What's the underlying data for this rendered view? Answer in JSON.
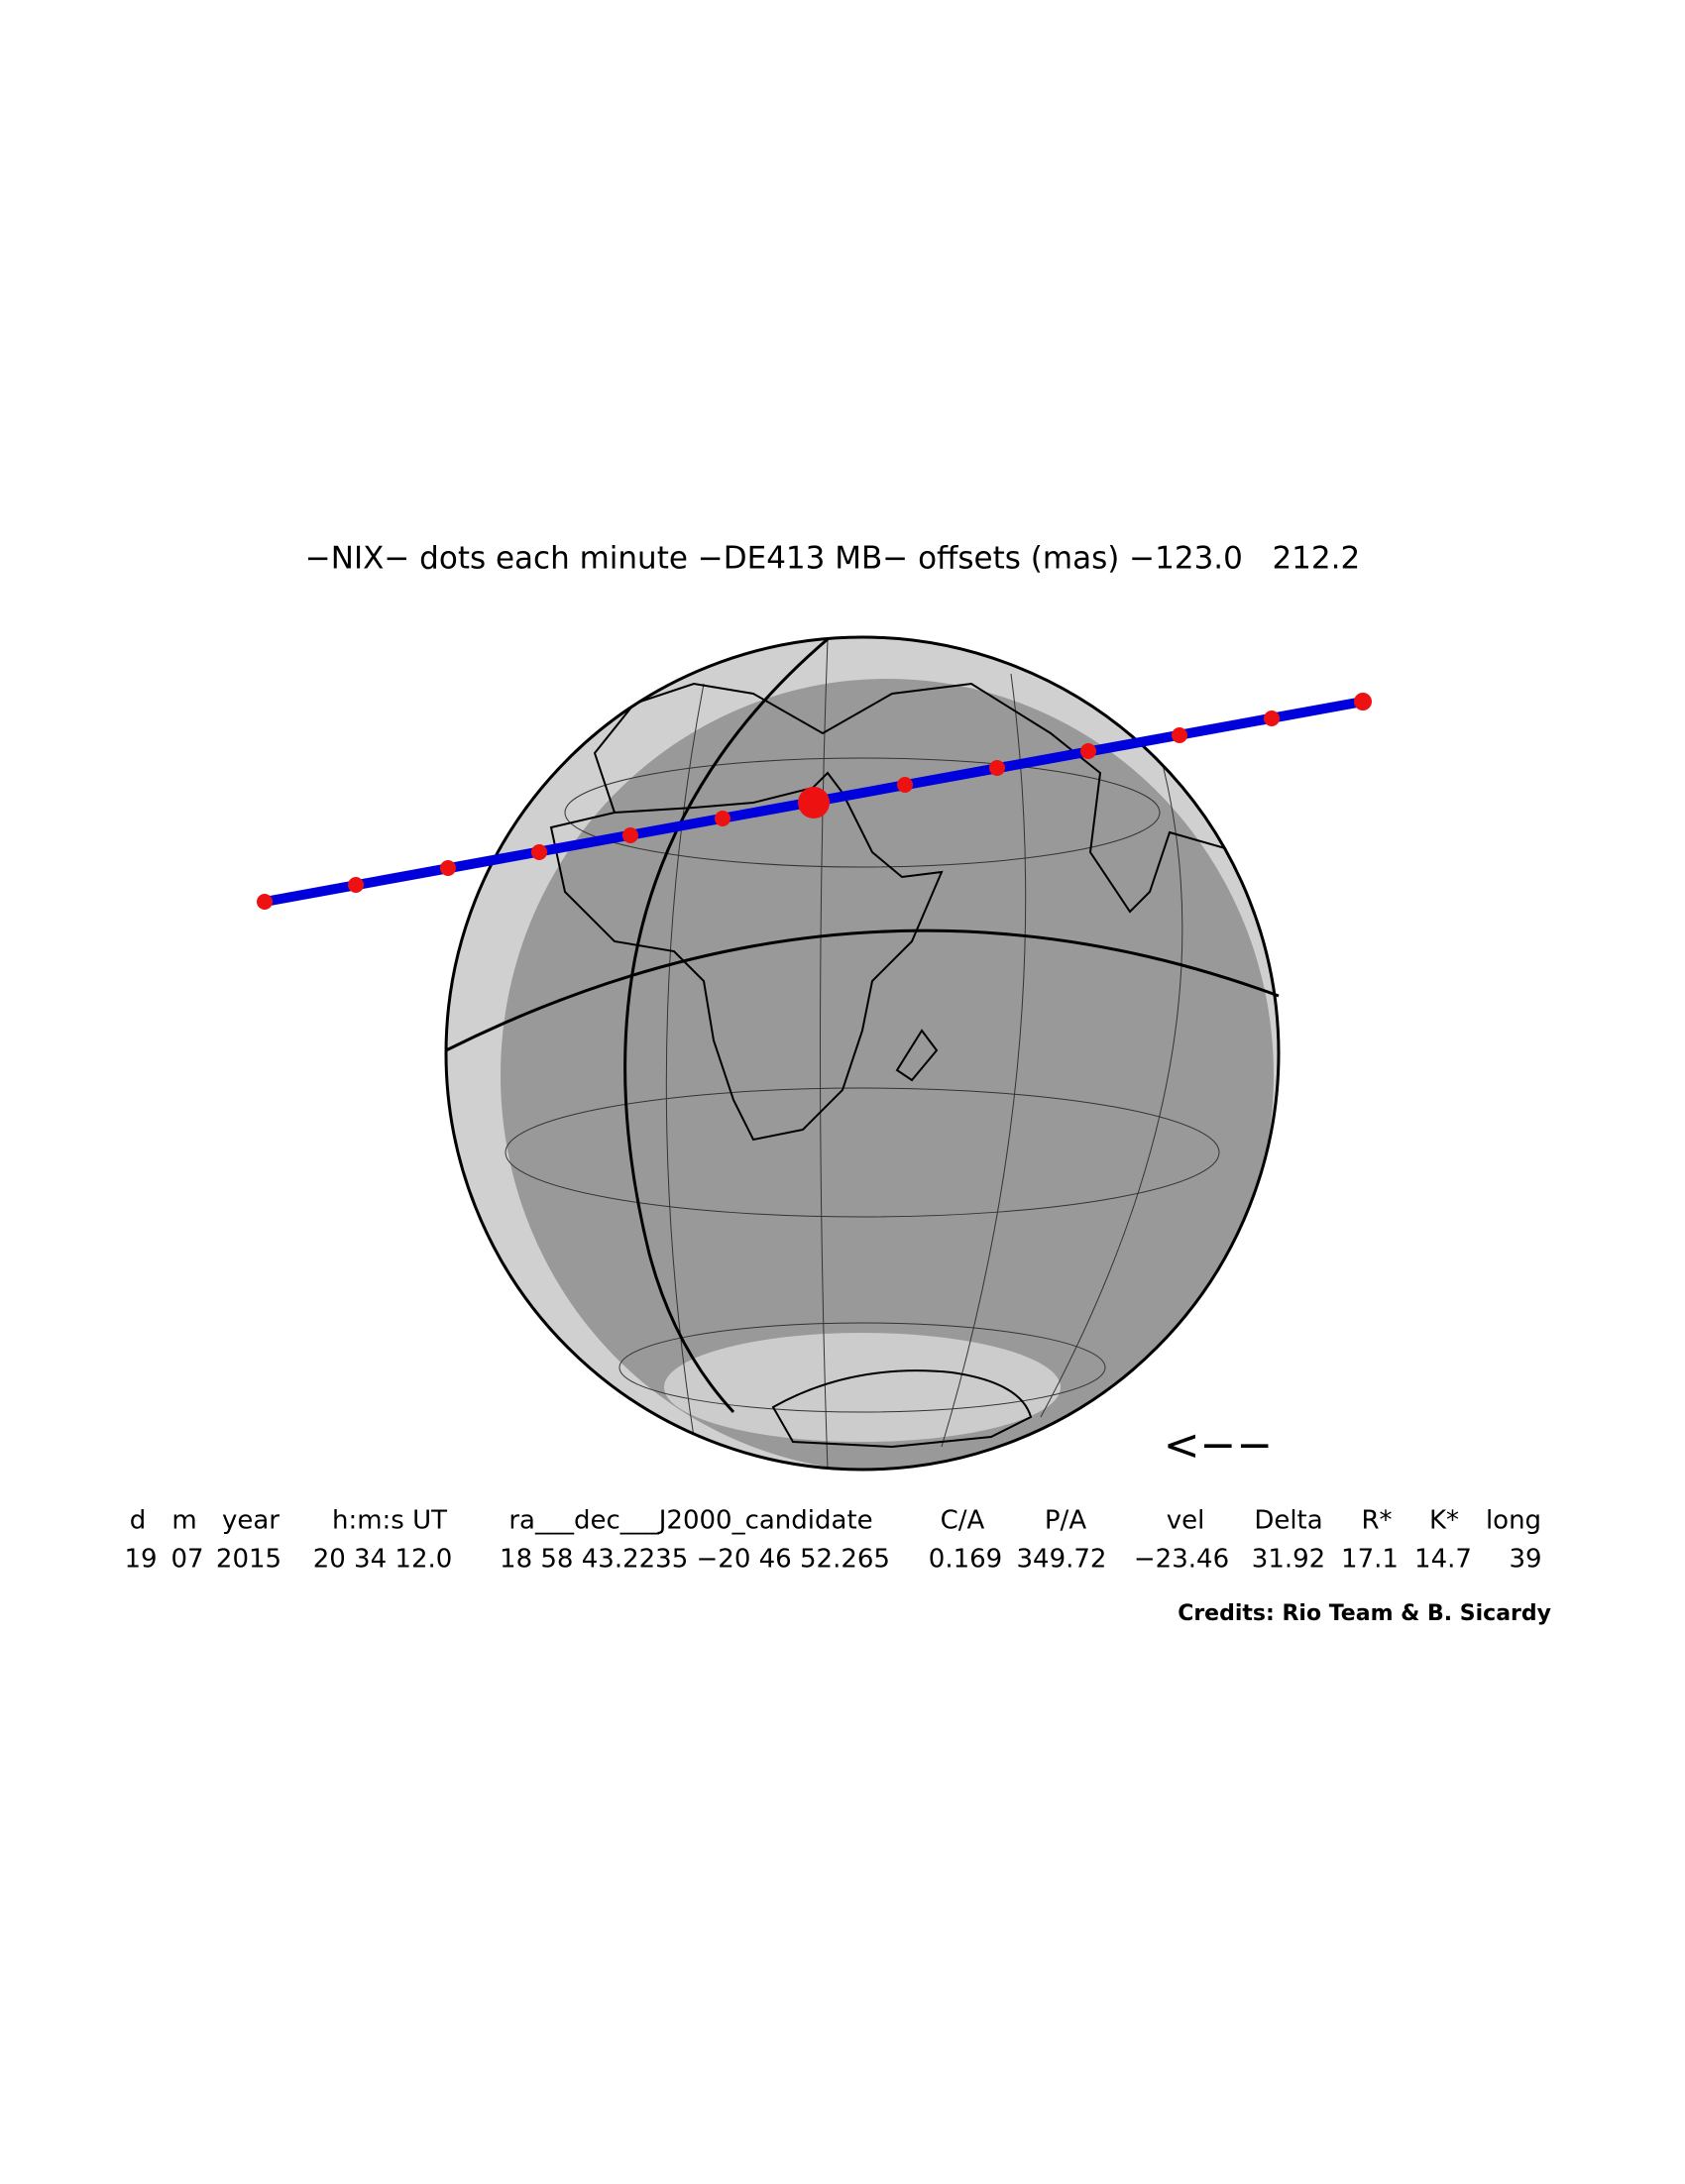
{
  "title": "−NIX− dots each minute −DE413 MB− offsets (mas) −123.0   212.2",
  "direction_arrow": "<−−",
  "table": {
    "headers": [
      "d",
      "m",
      "year",
      "h:m:s UT",
      "ra___dec___J2000_candidate",
      "C/A",
      "P/A",
      "vel",
      "Delta",
      "R*",
      "K*",
      "long"
    ],
    "values": [
      "19",
      "07",
      "2015",
      "20 34 12.0",
      "18 58 43.2235 −20 46 52.265",
      "0.169",
      "349.72",
      "−23.46",
      "31.92",
      "17.1",
      "14.7",
      "39"
    ]
  },
  "credits": "Credits: Rio Team & B. Sicardy"
}
